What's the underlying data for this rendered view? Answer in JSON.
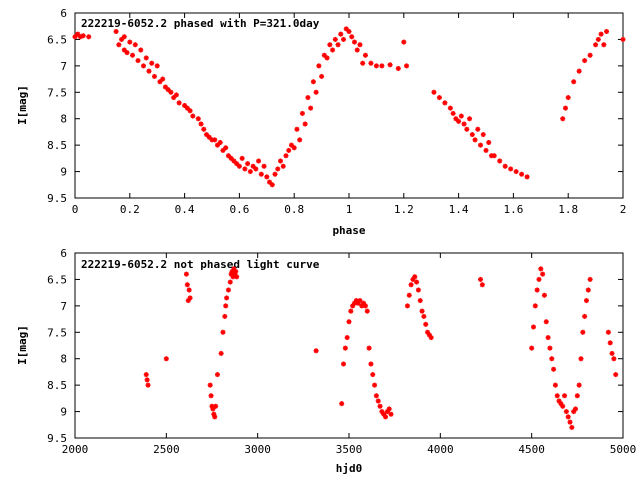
{
  "chart_data": [
    {
      "type": "scatter",
      "title": "222219-6052.2 phased with P=321.0day",
      "xlabel": "phase",
      "ylabel": "I[mag]",
      "xlim": [
        0,
        2
      ],
      "ylim": [
        6,
        9.5
      ],
      "y_inverted": true,
      "x_ticks": [
        "0",
        "0.2",
        "0.4",
        "0.6",
        "0.8",
        "1",
        "1.2",
        "1.4",
        "1.6",
        "1.8",
        "2"
      ],
      "y_ticks": [
        "6",
        "6.5",
        "7",
        "7.5",
        "8",
        "8.5",
        "9",
        "9.5"
      ],
      "x_tick_values": [
        0,
        0.2,
        0.4,
        0.6,
        0.8,
        1.0,
        1.2,
        1.4,
        1.6,
        1.8,
        2.0
      ],
      "y_tick_values": [
        6,
        6.5,
        7,
        7.5,
        8,
        8.5,
        9,
        9.5
      ],
      "color": "#ff0000",
      "series": [
        {
          "x": [
            0.0,
            0.01,
            0.02,
            0.03,
            0.05,
            0.15,
            0.16,
            0.17,
            0.18,
            0.18,
            0.19,
            0.2,
            0.21,
            0.22,
            0.23,
            0.24,
            0.25,
            0.26,
            0.27,
            0.28,
            0.29,
            0.3,
            0.31,
            0.32,
            0.33,
            0.34,
            0.35,
            0.36,
            0.37,
            0.38,
            0.4,
            0.41,
            0.42,
            0.43,
            0.45,
            0.46,
            0.47,
            0.48,
            0.49,
            0.5,
            0.51,
            0.52,
            0.53,
            0.54,
            0.55,
            0.56,
            0.57,
            0.58,
            0.59,
            0.6,
            0.61,
            0.62,
            0.63,
            0.64,
            0.65,
            0.66,
            0.67,
            0.68,
            0.69,
            0.7,
            0.71,
            0.72,
            0.73,
            0.74,
            0.75,
            0.76,
            0.77,
            0.78,
            0.79,
            0.8,
            0.81,
            0.82,
            0.83,
            0.84,
            0.85,
            0.86,
            0.87,
            0.88,
            0.89,
            0.9,
            0.91,
            0.92,
            0.93,
            0.94,
            0.95,
            0.96,
            0.97,
            0.98,
            0.99,
            1.0,
            1.01,
            1.02,
            1.03,
            1.04,
            1.05,
            1.06,
            1.08,
            1.1,
            1.12,
            1.15,
            1.18,
            1.2,
            1.21,
            1.31,
            1.33,
            1.35,
            1.37,
            1.38,
            1.39,
            1.4,
            1.41,
            1.42,
            1.43,
            1.44,
            1.45,
            1.46,
            1.47,
            1.48,
            1.49,
            1.5,
            1.51,
            1.52,
            1.53,
            1.55,
            1.57,
            1.59,
            1.61,
            1.63,
            1.65,
            1.78,
            1.79,
            1.8,
            1.82,
            1.84,
            1.86,
            1.88,
            1.9,
            1.91,
            1.92,
            1.93,
            1.94,
            2.0
          ],
          "y": [
            6.45,
            6.4,
            6.45,
            6.43,
            6.45,
            6.35,
            6.6,
            6.5,
            6.7,
            6.45,
            6.75,
            6.55,
            6.8,
            6.6,
            6.9,
            6.7,
            7.0,
            6.85,
            7.1,
            6.95,
            7.2,
            7.0,
            7.3,
            7.25,
            7.4,
            7.45,
            7.5,
            7.6,
            7.55,
            7.7,
            7.75,
            7.8,
            7.85,
            7.95,
            8.0,
            8.1,
            8.2,
            8.3,
            8.35,
            8.4,
            8.4,
            8.5,
            8.45,
            8.6,
            8.55,
            8.7,
            8.75,
            8.8,
            8.85,
            8.9,
            8.75,
            8.95,
            8.85,
            9.0,
            8.9,
            8.95,
            8.8,
            9.05,
            8.9,
            9.1,
            9.2,
            9.25,
            9.05,
            8.95,
            8.8,
            8.9,
            8.7,
            8.6,
            8.5,
            8.55,
            8.2,
            8.4,
            7.9,
            8.1,
            7.6,
            7.8,
            7.3,
            7.5,
            7.0,
            7.2,
            6.8,
            6.85,
            6.6,
            6.7,
            6.5,
            6.6,
            6.4,
            6.5,
            6.3,
            6.35,
            6.45,
            6.55,
            6.7,
            6.6,
            6.95,
            6.8,
            6.95,
            7.0,
            7.0,
            6.98,
            7.05,
            6.55,
            7.0,
            7.5,
            7.6,
            7.7,
            7.8,
            7.9,
            8.0,
            8.05,
            7.95,
            8.1,
            8.2,
            8.0,
            8.3,
            8.4,
            8.2,
            8.5,
            8.3,
            8.6,
            8.45,
            8.7,
            8.7,
            8.8,
            8.9,
            8.95,
            9.0,
            9.05,
            9.1,
            8.0,
            7.8,
            7.6,
            7.3,
            7.1,
            6.9,
            6.8,
            6.6,
            6.5,
            6.4,
            6.6,
            6.35,
            6.5
          ]
        }
      ]
    },
    {
      "type": "scatter",
      "title": "222219-6052.2 not phased light curve",
      "xlabel": "hjd0",
      "ylabel": "I[mag]",
      "xlim": [
        2000,
        5000
      ],
      "ylim": [
        6,
        9.5
      ],
      "y_inverted": true,
      "x_ticks": [
        "2000",
        "2500",
        "3000",
        "3500",
        "4000",
        "4500",
        "5000"
      ],
      "y_ticks": [
        "6",
        "6.5",
        "7",
        "7.5",
        "8",
        "8.5",
        "9",
        "9.5"
      ],
      "x_tick_values": [
        2000,
        2500,
        3000,
        3500,
        4000,
        4500,
        5000
      ],
      "y_tick_values": [
        6,
        6.5,
        7,
        7.5,
        8,
        8.5,
        9,
        9.5
      ],
      "color": "#ff0000",
      "series": [
        {
          "x": [
            2390,
            2395,
            2400,
            2500,
            2610,
            2615,
            2620,
            2625,
            2630,
            2740,
            2745,
            2750,
            2755,
            2760,
            2765,
            2770,
            2780,
            2800,
            2810,
            2820,
            2825,
            2830,
            2840,
            2850,
            2855,
            2860,
            2865,
            2870,
            2875,
            2880,
            2885,
            3320,
            3460,
            3470,
            3480,
            3490,
            3500,
            3510,
            3520,
            3530,
            3540,
            3550,
            3560,
            3570,
            3580,
            3590,
            3600,
            3610,
            3620,
            3630,
            3640,
            3650,
            3660,
            3670,
            3680,
            3690,
            3700,
            3710,
            3720,
            3730,
            3820,
            3830,
            3840,
            3850,
            3860,
            3870,
            3880,
            3890,
            3900,
            3910,
            3920,
            3930,
            3940,
            3950,
            4220,
            4230,
            4500,
            4510,
            4520,
            4530,
            4540,
            4550,
            4560,
            4570,
            4580,
            4590,
            4600,
            4610,
            4620,
            4630,
            4640,
            4650,
            4660,
            4670,
            4680,
            4690,
            4700,
            4710,
            4720,
            4730,
            4740,
            4750,
            4760,
            4770,
            4780,
            4790,
            4800,
            4810,
            4820,
            4920,
            4930,
            4940,
            4950,
            4960
          ],
          "y": [
            8.3,
            8.4,
            8.5,
            8.0,
            6.4,
            6.6,
            6.9,
            6.7,
            6.85,
            8.5,
            8.7,
            8.9,
            8.95,
            9.05,
            9.1,
            8.9,
            8.3,
            7.9,
            7.5,
            7.2,
            7.0,
            6.85,
            6.7,
            6.55,
            6.4,
            6.35,
            6.45,
            6.3,
            6.4,
            6.35,
            6.45,
            7.85,
            8.85,
            8.1,
            7.8,
            7.6,
            7.3,
            7.1,
            7.0,
            6.95,
            6.9,
            6.95,
            6.9,
            7.0,
            6.95,
            7.0,
            7.1,
            7.8,
            8.1,
            8.3,
            8.5,
            8.7,
            8.8,
            8.9,
            9.0,
            9.05,
            9.1,
            9.0,
            8.95,
            9.05,
            7.0,
            6.8,
            6.6,
            6.5,
            6.45,
            6.55,
            6.7,
            6.9,
            7.1,
            7.2,
            7.35,
            7.5,
            7.55,
            7.6,
            6.5,
            6.6,
            7.8,
            7.4,
            7.0,
            6.7,
            6.5,
            6.3,
            6.4,
            6.8,
            7.3,
            7.6,
            7.8,
            8.0,
            8.2,
            8.5,
            8.7,
            8.8,
            8.85,
            8.9,
            8.7,
            9.0,
            9.1,
            9.2,
            9.3,
            9.0,
            8.95,
            8.7,
            8.5,
            8.0,
            7.5,
            7.2,
            6.9,
            6.7,
            6.5,
            7.5,
            7.7,
            7.9,
            8.0,
            8.3
          ]
        }
      ]
    }
  ]
}
